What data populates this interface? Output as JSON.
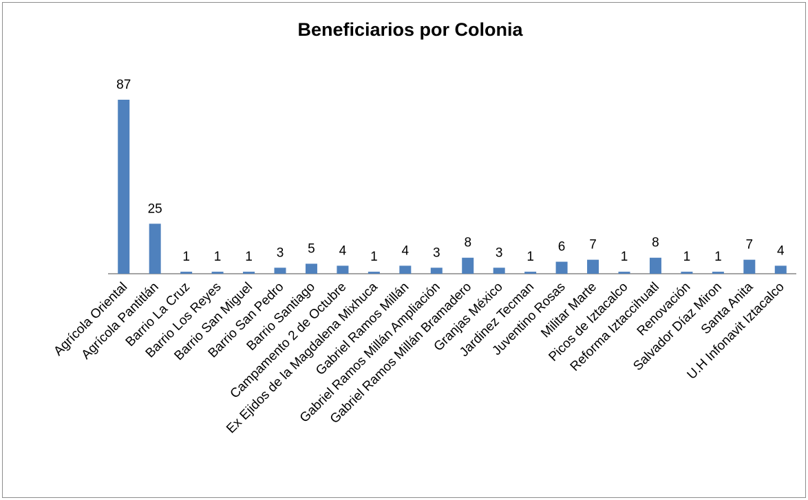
{
  "chart_data": {
    "type": "bar",
    "title": "Beneficiarios por Colonia",
    "categories": [
      "Agrícola Oriental",
      "Agrícola Pantitlán",
      "Barrio La Cruz",
      "Barrio Los Reyes",
      "Barrio San Miguel",
      "Barrio San Pedro",
      "Barrio Santiago",
      "Campamento 2 de Octubre",
      "Ex Ejidos de la Magdalena Mixhuca",
      "Gabriel Ramos Millán",
      "Gabriel Ramos Millán Ampliación",
      "Gabriel Ramos Millán Bramadero",
      "Granjas México",
      "Jardinez Tecman",
      "Juventino Rosas",
      "Militar Marte",
      "Picos de Iztacalco",
      "Reforma Iztaccihuatl",
      "Renovación",
      "Salvador Díaz Miron",
      "Santa Anita",
      "U.H Infonavit Iztacalco"
    ],
    "values": [
      87,
      25,
      1,
      1,
      1,
      3,
      5,
      4,
      1,
      4,
      3,
      8,
      3,
      1,
      6,
      7,
      1,
      8,
      1,
      1,
      7,
      4
    ],
    "color": "#4f81bd"
  }
}
